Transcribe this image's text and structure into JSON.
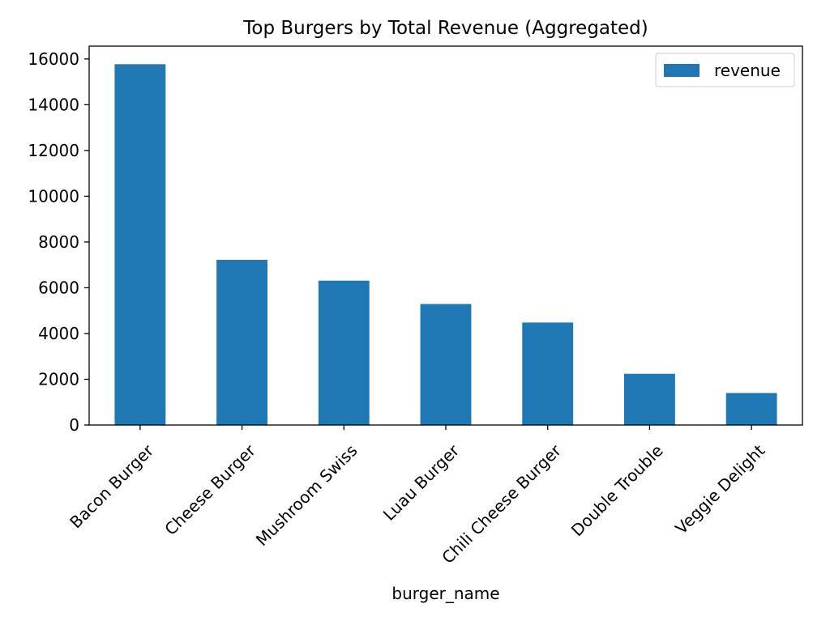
{
  "chart_data": {
    "type": "bar",
    "title": "Top Burgers by Total Revenue (Aggregated)",
    "xlabel": "burger_name",
    "ylabel": "",
    "categories": [
      "Bacon Burger",
      "Cheese Burger",
      "Mushroom Swiss",
      "Luau Burger",
      "Chili Cheese Burger",
      "Double Trouble",
      "Veggie Delight"
    ],
    "series": [
      {
        "name": "revenue",
        "values": [
          15770,
          7220,
          6310,
          5290,
          4480,
          2240,
          1400
        ],
        "color": "#1f77b4"
      }
    ],
    "ylim": [
      0,
      16560
    ],
    "yticks": [
      0,
      2000,
      4000,
      6000,
      8000,
      10000,
      12000,
      14000,
      16000
    ],
    "ytick_labels": [
      "0",
      "2000",
      "4000",
      "6000",
      "8000",
      "10000",
      "12000",
      "14000",
      "16000"
    ],
    "xtick_rotation_deg": 45,
    "grid": false,
    "legend": {
      "position": "top-right",
      "entries": [
        "revenue"
      ]
    }
  }
}
